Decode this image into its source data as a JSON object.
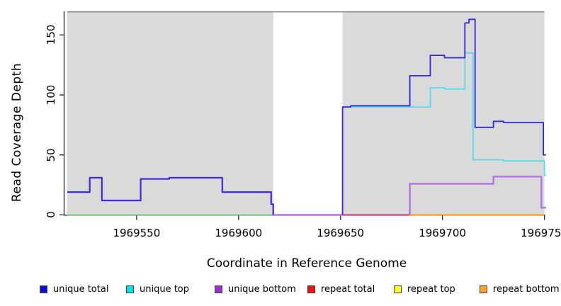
{
  "figure": {
    "xlabel": "Coordinate in Reference Genome",
    "ylabel": "Read Coverage Depth"
  },
  "chart_data": {
    "type": "line",
    "step": true,
    "xlabel": "Coordinate in Reference Genome",
    "ylabel": "Read Coverage Depth",
    "xlim": [
      1969516,
      1969750.5
    ],
    "ylim": [
      0,
      169.5
    ],
    "xticks": [
      "1969550",
      "1969600",
      "1969650",
      "1969700",
      "1969750"
    ],
    "xtick_values": [
      1969550,
      1969600,
      1969650,
      1969700,
      1969750
    ],
    "yticks": [
      "0",
      "50",
      "100",
      "150"
    ],
    "ytick_values": [
      0,
      50,
      100,
      150
    ],
    "grid": false,
    "background_color": "#ffffff",
    "mask_region_color": "#dadada",
    "mask_regions": [
      [
        1969516,
        1969617
      ],
      [
        1969651,
        1969750
      ]
    ],
    "uncovered_gap": [
      1969617,
      1969651
    ],
    "gap_top_line_color": "#8a8a8a",
    "axis_color": "#262626",
    "series": [
      {
        "name": "unique_total",
        "label": "unique total",
        "legend_color": "#0d0dd8",
        "line_color": "#3127de",
        "segments": [
          [
            [
              1969516,
              19
            ],
            [
              1969527,
              31
            ],
            [
              1969533,
              12
            ],
            [
              1969552,
              30
            ],
            [
              1969566,
              31
            ],
            [
              1969592,
              19
            ],
            [
              1969616,
              9
            ],
            [
              1969617,
              0
            ]
          ],
          [
            [
              1969651,
              0
            ],
            [
              1969651,
              90
            ],
            [
              1969655,
              91
            ],
            [
              1969684,
              116
            ],
            [
              1969694,
              133
            ],
            [
              1969701,
              131
            ],
            [
              1969711,
              160
            ],
            [
              1969713,
              163
            ],
            [
              1969716,
              73
            ],
            [
              1969725,
              78
            ],
            [
              1969730,
              77
            ],
            [
              1969749.5,
              50
            ],
            [
              1969751,
              50
            ]
          ]
        ]
      },
      {
        "name": "unique_top",
        "label": "unique top",
        "legend_color": "#00e2ea",
        "line_color": "#55dcec",
        "segments": [
          [
            [
              1969651,
              90
            ],
            [
              1969694,
              106
            ],
            [
              1969701,
              105
            ],
            [
              1969711,
              135
            ],
            [
              1969715,
              46
            ],
            [
              1969730,
              45
            ],
            [
              1969750,
              33
            ],
            [
              1969751,
              33
            ]
          ]
        ]
      },
      {
        "name": "unique_bottom",
        "label": "unique bottom",
        "legend_color": "#9a30cf",
        "line_color": "#b57ae2",
        "segments": [
          [
            [
              1969516,
              19
            ],
            [
              1969527,
              31
            ],
            [
              1969533,
              12
            ],
            [
              1969552,
              30
            ],
            [
              1969566,
              31
            ],
            [
              1969592,
              19
            ],
            [
              1969616,
              9
            ],
            [
              1969617,
              0
            ],
            [
              1969684,
              0
            ],
            [
              1969684,
              26
            ],
            [
              1969725,
              32
            ],
            [
              1969748.5,
              6
            ],
            [
              1969751,
              6
            ]
          ]
        ]
      },
      {
        "name": "repeat_total",
        "label": "repeat total",
        "legend_color": "#ee1111",
        "line_color": "#c85570",
        "segments": [
          [
            [
              1969651,
              0
            ],
            [
              1969684,
              0
            ]
          ]
        ]
      },
      {
        "name": "repeat_top",
        "label": "repeat top",
        "legend_color": "#fdfd2a",
        "line_color": "#fdfd2a",
        "segments": []
      },
      {
        "name": "repeat_bottom",
        "label": "repeat bottom",
        "legend_color": "#ffa126",
        "line_color": "#ff9d26",
        "segments": [
          [
            [
              1969684,
              0
            ],
            [
              1969750,
              0
            ]
          ]
        ]
      }
    ],
    "extra_lines": [
      {
        "name": "zero_baseline_left",
        "line_color": "#79c679",
        "segments": [
          [
            [
              1969516,
              0
            ],
            [
              1969617,
              0
            ]
          ]
        ]
      }
    ],
    "legend_position": "bottom"
  },
  "legend": {
    "items": [
      {
        "label": "unique total",
        "color": "#0d0dd8"
      },
      {
        "label": "unique top",
        "color": "#00e2ea"
      },
      {
        "label": "unique bottom",
        "color": "#9a30cf"
      },
      {
        "label": "repeat total",
        "color": "#ee1111"
      },
      {
        "label": "repeat top",
        "color": "#fdfd2a"
      },
      {
        "label": "repeat bottom",
        "color": "#ffa126"
      }
    ]
  }
}
